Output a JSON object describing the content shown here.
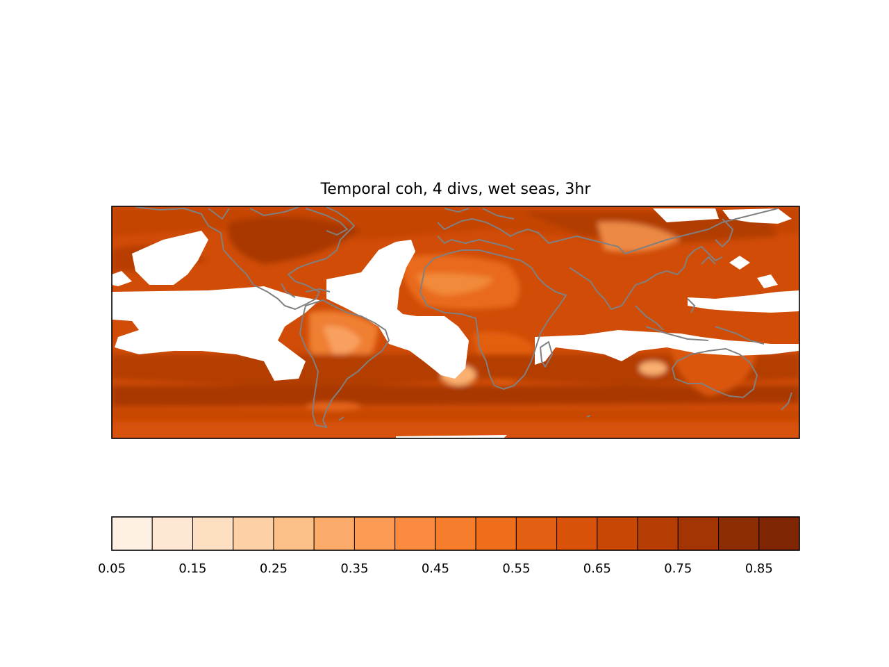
{
  "chart_data": {
    "type": "heatmap",
    "title": "Temporal coh, 4 divs, wet seas, 3hr",
    "map": "global",
    "coastline_color": "#808080",
    "missing_color": "#ffffff",
    "colorbar": {
      "orientation": "horizontal",
      "range": [
        0.05,
        0.9
      ],
      "boundaries": [
        0.05,
        0.1,
        0.15,
        0.2,
        0.25,
        0.3,
        0.35,
        0.4,
        0.45,
        0.5,
        0.55,
        0.6,
        0.65,
        0.7,
        0.75,
        0.8,
        0.85,
        0.9
      ],
      "colors": [
        "#fff0e4",
        "#fee8d4",
        "#fddfc1",
        "#fdd1a5",
        "#fdc088",
        "#fdab6b",
        "#fd9a54",
        "#fc8a3f",
        "#f67d2b",
        "#ee6e1c",
        "#e35f11",
        "#d85209",
        "#c84705",
        "#b63d04",
        "#a23503",
        "#8c2d04",
        "#7f2704"
      ],
      "tick_labels": [
        "0.05",
        "0.15",
        "0.25",
        "0.35",
        "0.45",
        "0.55",
        "0.65",
        "0.75",
        "0.85"
      ]
    }
  }
}
